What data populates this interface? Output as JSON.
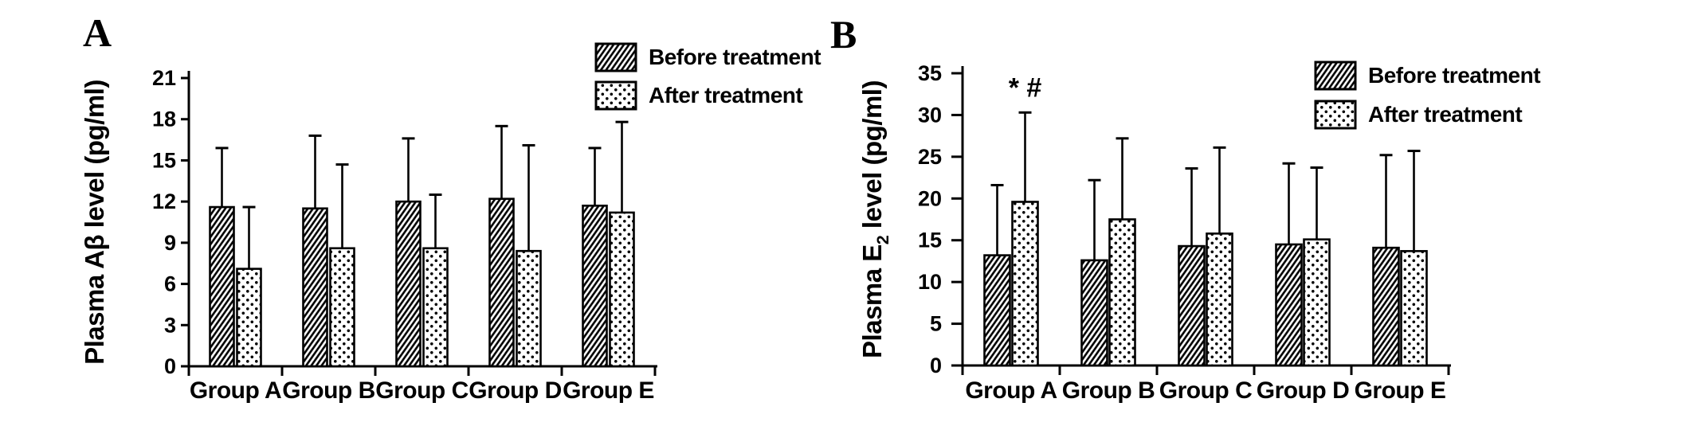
{
  "figure": {
    "background": "#ffffff",
    "ink_color": "#000000"
  },
  "chart_data": [
    {
      "type": "bar",
      "panel_label": "A",
      "ylabel": "Plasma Aβ level (pg/ml)",
      "ylabel_parts": [
        {
          "text": "Plasma Aβ level (pg/ml)",
          "sub": false
        }
      ],
      "xlabel": "",
      "categories": [
        "Group A",
        "Group B",
        "Group C",
        "Group D",
        "Group E"
      ],
      "yticks": [
        0,
        3,
        6,
        9,
        12,
        15,
        18,
        21
      ],
      "ylim": [
        0,
        21
      ],
      "grid": false,
      "legend_position": "top-right",
      "series": [
        {
          "name": "Before treatment",
          "pattern": "diagonal-hatch",
          "values": [
            11.6,
            11.5,
            12.0,
            12.2,
            11.7
          ],
          "errors_up": [
            4.3,
            5.3,
            4.6,
            5.3,
            4.2
          ]
        },
        {
          "name": "After treatment",
          "pattern": "polka-dots",
          "values": [
            7.1,
            8.6,
            8.6,
            8.4,
            11.2
          ],
          "errors_up": [
            4.5,
            6.1,
            3.9,
            7.7,
            6.6
          ]
        }
      ],
      "annotations": []
    },
    {
      "type": "bar",
      "panel_label": "B",
      "ylabel": "Plasma E2 level (pg/ml)",
      "ylabel_parts": [
        {
          "text": "Plasma E",
          "sub": false
        },
        {
          "text": "2",
          "sub": true
        },
        {
          "text": " level (pg/ml)",
          "sub": false
        }
      ],
      "xlabel": "",
      "categories": [
        "Group A",
        "Group B",
        "Group C",
        "Group D",
        "Group E"
      ],
      "yticks": [
        0,
        5,
        10,
        15,
        20,
        25,
        30,
        35
      ],
      "ylim": [
        0,
        35
      ],
      "grid": false,
      "legend_position": "top-right",
      "series": [
        {
          "name": "Before treatment",
          "pattern": "diagonal-hatch",
          "values": [
            13.2,
            12.6,
            14.3,
            14.5,
            14.1
          ],
          "errors_up": [
            8.4,
            9.6,
            9.3,
            9.7,
            11.1
          ]
        },
        {
          "name": "After treatment",
          "pattern": "polka-dots",
          "values": [
            19.6,
            17.5,
            15.8,
            15.1,
            13.7
          ],
          "errors_up": [
            10.7,
            9.7,
            10.3,
            8.6,
            12.0
          ]
        }
      ],
      "annotations": [
        {
          "text": "* #",
          "group_index": 0,
          "series_index": 1
        }
      ]
    }
  ]
}
